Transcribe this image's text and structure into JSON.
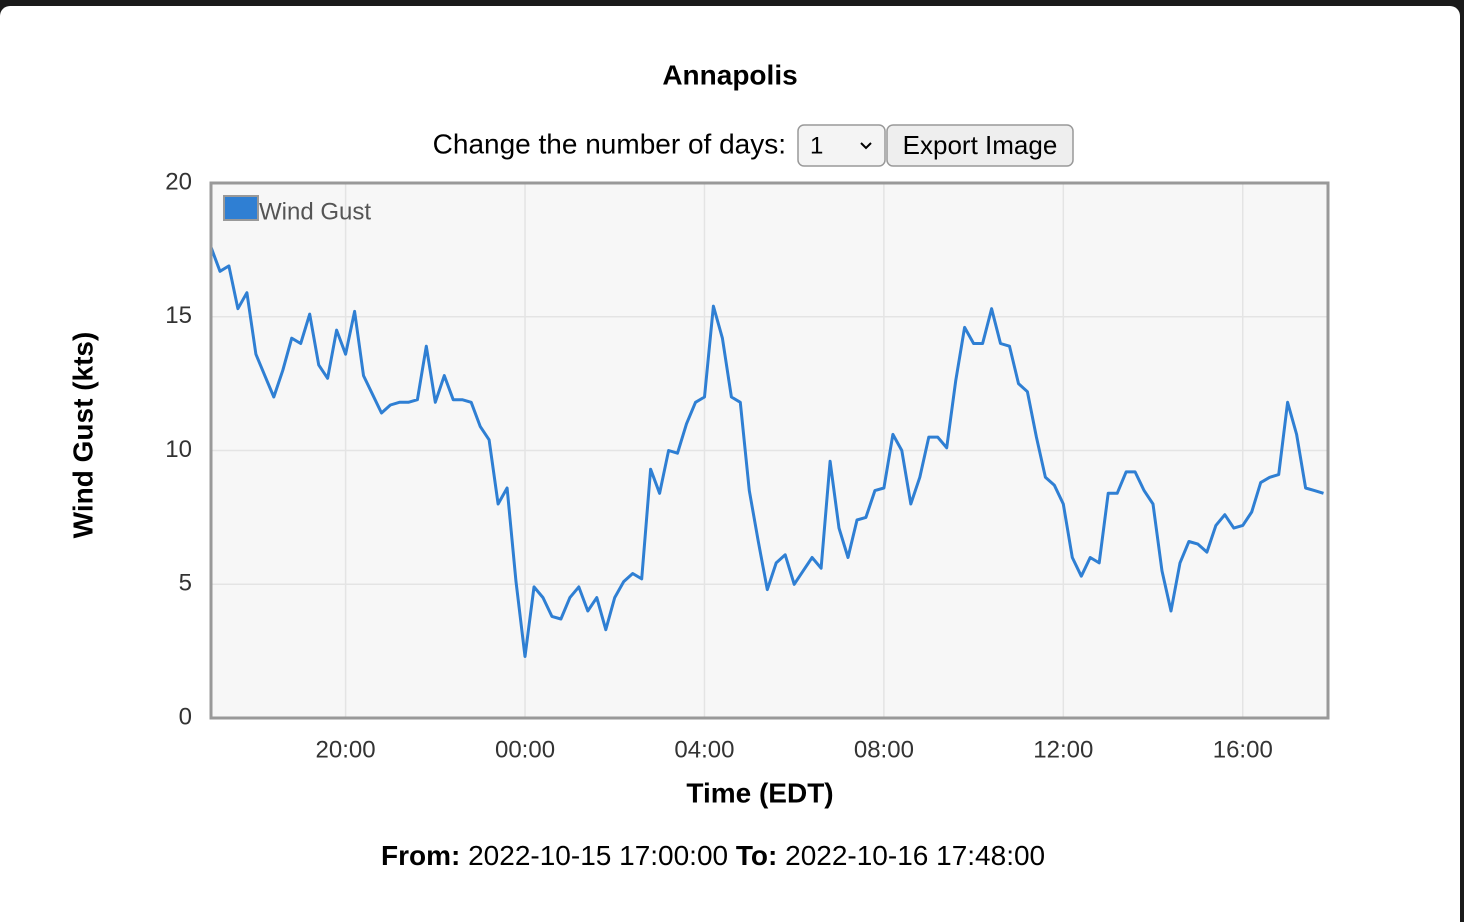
{
  "chart_data": {
    "type": "line",
    "title": "Annapolis",
    "x_label": "Time (EDT)",
    "y_label": "Wind Gust (kts)",
    "xlim": [
      17,
      41.9
    ],
    "ylim": [
      0,
      20
    ],
    "xticks": [
      {
        "value": 20,
        "label": "20:00"
      },
      {
        "value": 24,
        "label": "00:00"
      },
      {
        "value": 28,
        "label": "04:00"
      },
      {
        "value": 32,
        "label": "08:00"
      },
      {
        "value": 36,
        "label": "12:00"
      },
      {
        "value": 40,
        "label": "16:00"
      }
    ],
    "yticks": [
      0,
      5,
      10,
      15,
      20
    ],
    "grid": true,
    "legend": "top-left",
    "x": [
      17.0,
      17.2,
      17.4,
      17.6,
      17.8,
      18.0,
      18.2,
      18.4,
      18.6,
      18.8,
      19.0,
      19.2,
      19.4,
      19.6,
      19.8,
      20.0,
      20.2,
      20.4,
      20.6,
      20.8,
      21.0,
      21.2,
      21.4,
      21.6,
      21.8,
      22.0,
      22.2,
      22.4,
      22.6,
      22.8,
      23.0,
      23.2,
      23.4,
      23.6,
      23.8,
      24.0,
      24.2,
      24.4,
      24.6,
      24.8,
      25.0,
      25.2,
      25.4,
      25.6,
      25.8,
      26.0,
      26.2,
      26.4,
      26.6,
      26.8,
      27.0,
      27.2,
      27.4,
      27.6,
      27.8,
      28.0,
      28.2,
      28.4,
      28.6,
      28.8,
      29.0,
      29.2,
      29.4,
      29.6,
      29.8,
      30.0,
      30.2,
      30.4,
      30.6,
      30.8,
      31.0,
      31.2,
      31.4,
      31.6,
      31.8,
      32.0,
      32.2,
      32.4,
      32.6,
      32.8,
      33.0,
      33.2,
      33.4,
      33.6,
      33.8,
      34.0,
      34.2,
      34.4,
      34.6,
      34.8,
      35.0,
      35.2,
      35.4,
      35.6,
      35.8,
      36.0,
      36.2,
      36.4,
      36.6,
      36.8,
      37.0,
      37.2,
      37.4,
      37.6,
      37.8,
      38.0,
      38.2,
      38.4,
      38.6,
      38.8,
      39.0,
      39.2,
      39.4,
      39.6,
      39.8,
      40.0,
      40.2,
      40.4,
      40.6,
      40.8,
      41.0,
      41.2,
      41.4,
      41.6,
      41.8
    ],
    "series": [
      {
        "name": "Wind Gust",
        "color": "#2f7fd3",
        "values": [
          17.6,
          16.7,
          16.9,
          15.3,
          15.9,
          13.6,
          12.8,
          12.0,
          13.0,
          14.2,
          14.0,
          15.1,
          13.2,
          12.7,
          14.5,
          13.6,
          15.2,
          12.8,
          12.1,
          11.4,
          11.7,
          11.8,
          11.8,
          11.9,
          13.9,
          11.8,
          12.8,
          11.9,
          11.9,
          11.8,
          10.9,
          10.4,
          8.0,
          8.6,
          5.1,
          2.3,
          4.9,
          4.5,
          3.8,
          3.7,
          4.5,
          4.9,
          4.0,
          4.5,
          3.3,
          4.5,
          5.1,
          5.4,
          5.2,
          9.3,
          8.4,
          10.0,
          9.9,
          11.0,
          11.8,
          12.0,
          15.4,
          14.2,
          12.0,
          11.8,
          8.5,
          6.6,
          4.8,
          5.8,
          6.1,
          5.0,
          5.5,
          6.0,
          5.6,
          9.6,
          7.1,
          6.0,
          7.4,
          7.5,
          8.5,
          8.6,
          10.6,
          10.0,
          8.0,
          9.0,
          10.5,
          10.5,
          10.1,
          12.6,
          14.6,
          14.0,
          14.0,
          15.3,
          14.0,
          13.9,
          12.5,
          12.2,
          10.5,
          9.0,
          8.7,
          8.0,
          6.0,
          5.3,
          6.0,
          5.8,
          8.4,
          8.4,
          9.2,
          9.2,
          8.5,
          8.0,
          5.5,
          4.0,
          5.8,
          6.6,
          6.5,
          6.2,
          7.2,
          7.6,
          7.1,
          7.2,
          7.7,
          8.8,
          9.0,
          9.1,
          11.8,
          10.6,
          8.6,
          8.5,
          8.4
        ]
      }
    ]
  },
  "controls": {
    "label": "Change the number of days:",
    "days": "1",
    "button": "Export Image"
  },
  "footer": {
    "from_label": "From:",
    "from": "2022-10-15 17:00:00",
    "to_label": "To:",
    "to": "2022-10-16 17:48:00"
  }
}
